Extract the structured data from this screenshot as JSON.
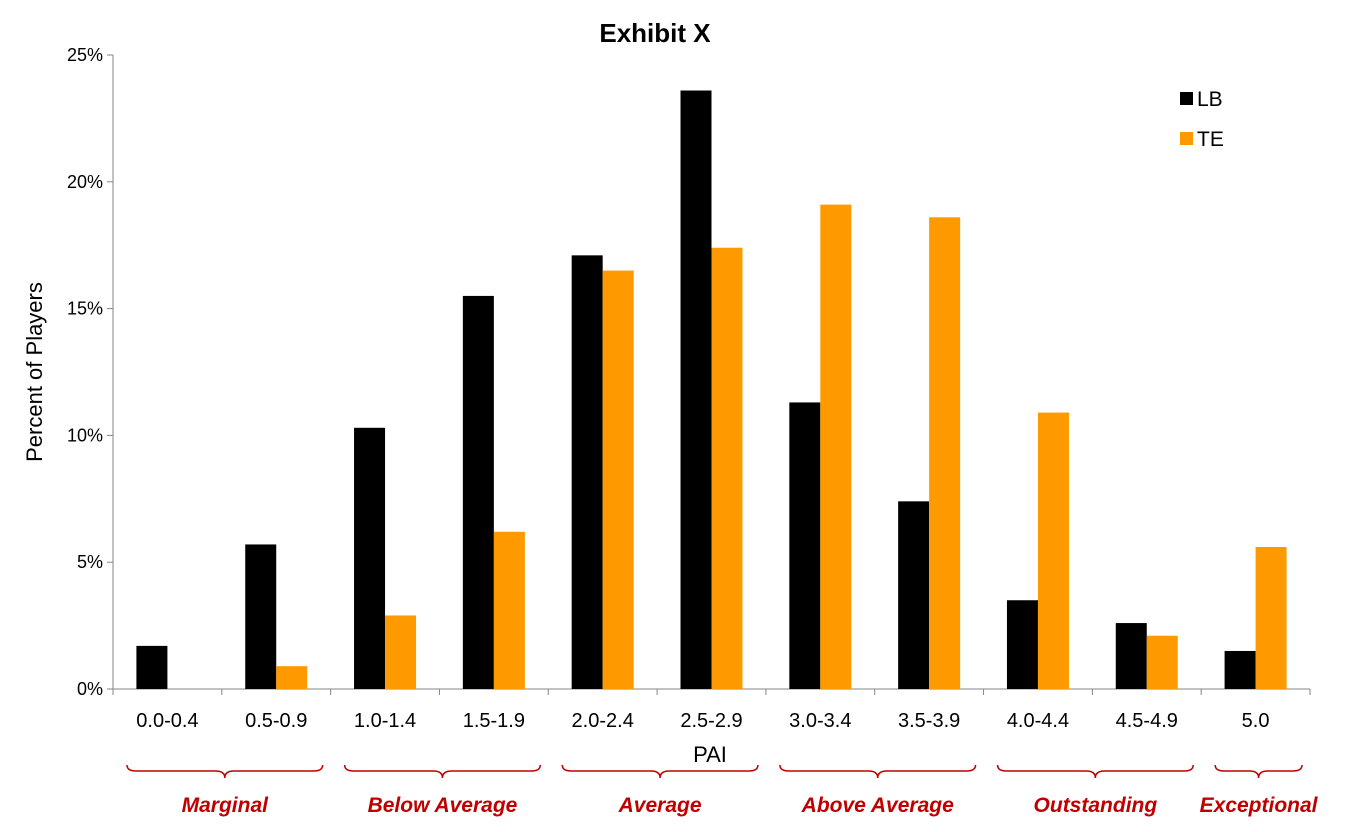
{
  "chart_data": {
    "type": "bar",
    "title": "Exhibit X",
    "xlabel": "PAI",
    "ylabel": "Percent of Players",
    "categories": [
      "0.0-0.4",
      "0.5-0.9",
      "1.0-1.4",
      "1.5-1.9",
      "2.0-2.4",
      "2.5-2.9",
      "3.0-3.4",
      "3.5-3.9",
      "4.0-4.4",
      "4.5-4.9",
      "5.0"
    ],
    "series": [
      {
        "name": "LB",
        "color": "#000000",
        "values": [
          1.7,
          5.7,
          10.3,
          15.5,
          17.1,
          23.6,
          11.3,
          7.4,
          3.5,
          2.6,
          1.5
        ]
      },
      {
        "name": "TE",
        "color": "#ff9900",
        "values": [
          0,
          0.9,
          2.9,
          6.2,
          16.5,
          17.4,
          19.1,
          18.6,
          10.9,
          2.1,
          5.6
        ]
      }
    ],
    "ylim": [
      0,
      25
    ],
    "yticks": [
      0,
      5,
      10,
      15,
      20,
      25
    ],
    "ytick_labels": [
      "0%",
      "5%",
      "10%",
      "15%",
      "20%",
      "25%"
    ],
    "legend_position": "top-right",
    "grid": false,
    "groups": [
      {
        "label": "Marginal",
        "start": 0,
        "end": 1
      },
      {
        "label": "Below Average",
        "start": 2,
        "end": 3
      },
      {
        "label": "Average",
        "start": 4,
        "end": 5
      },
      {
        "label": "Above Average",
        "start": 6,
        "end": 7
      },
      {
        "label": "Outstanding",
        "start": 8,
        "end": 9
      },
      {
        "label": "Exceptional",
        "start": 10,
        "end": 10
      }
    ],
    "group_color": "#c00000",
    "axis_color": "#868686"
  }
}
